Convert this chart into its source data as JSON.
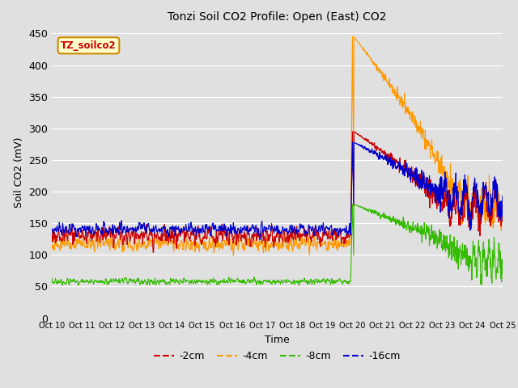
{
  "title": "Tonzi Soil CO2 Profile: Open (East) CO2",
  "xlabel": "Time",
  "ylabel": "Soil CO2 (mV)",
  "ylim": [
    0,
    460
  ],
  "yticks": [
    0,
    50,
    100,
    150,
    200,
    250,
    300,
    350,
    400,
    450
  ],
  "background_color": "#e0e0e0",
  "plot_bg_color": "#e0e0e0",
  "legend_label": "TZ_soilco2",
  "legend_bg": "#ffffcc",
  "legend_border": "#cc8800",
  "series_colors": {
    "-2cm": "#cc0000",
    "-4cm": "#ff9900",
    "-8cm": "#33bb00",
    "-16cm": "#0000cc"
  },
  "x_tick_labels": [
    "Oct 10",
    "Oct 11",
    "Oct 12",
    "Oct 13",
    "Oct 14",
    "Oct 15",
    "Oct 16",
    "Oct 17",
    "Oct 18",
    "Oct 19",
    "Oct 20",
    "Oct 21",
    "Oct 22",
    "Oct 23",
    "Oct 24",
    "Oct 25"
  ],
  "num_points": 1500,
  "transition_day": 10.0
}
